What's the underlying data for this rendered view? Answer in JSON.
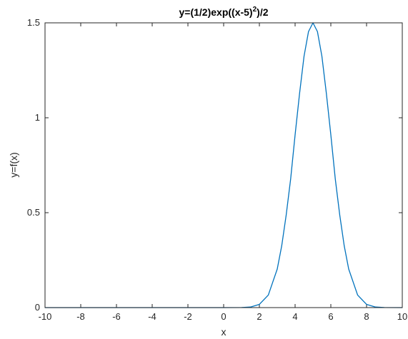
{
  "chart_data": {
    "type": "line",
    "title": "y=(1/2)exp((x-5)²)/2",
    "title_parts": {
      "prefix": "y=(1/2)exp((x-5)",
      "superscript": "2",
      "suffix": ")/2"
    },
    "xlabel": "x",
    "ylabel": "y=f(x)",
    "xlim": [
      -10,
      10
    ],
    "ylim": [
      0,
      1.5
    ],
    "xticks": [
      -10,
      -8,
      -6,
      -4,
      -2,
      0,
      2,
      4,
      6,
      8,
      10
    ],
    "xtick_labels": [
      "-10",
      "-8",
      "-6",
      "-4",
      "-2",
      "0",
      "2",
      "4",
      "6",
      "8",
      "10"
    ],
    "yticks": [
      0,
      0.5,
      1,
      1.5
    ],
    "ytick_labels": [
      "0",
      "0.5",
      "1",
      "1.5"
    ],
    "grid": false,
    "series": [
      {
        "color": "#0072bd",
        "x": [
          -10,
          0,
          1,
          1.5,
          2,
          2.5,
          3,
          3.25,
          3.5,
          3.75,
          4,
          4.25,
          4.5,
          4.75,
          5,
          5.25,
          5.5,
          5.75,
          6,
          6.25,
          6.5,
          6.75,
          7,
          7.5,
          8,
          8.5,
          9,
          10
        ],
        "y": [
          0,
          0,
          0.0005,
          0.003,
          0.017,
          0.066,
          0.203,
          0.325,
          0.487,
          0.677,
          0.91,
          1.128,
          1.324,
          1.454,
          1.5,
          1.454,
          1.324,
          1.128,
          0.91,
          0.677,
          0.487,
          0.325,
          0.203,
          0.066,
          0.017,
          0.003,
          0.0005,
          0
        ]
      }
    ]
  }
}
